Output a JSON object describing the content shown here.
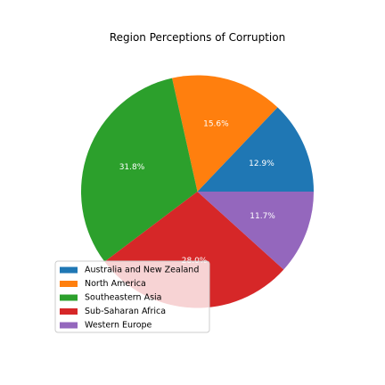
{
  "chart_data": {
    "type": "pie",
    "title": "Region Perceptions of Corruption",
    "categories": [
      "Australia and New Zealand",
      "North America",
      "Southeastern Asia",
      "Sub-Saharan Africa",
      "Western Europe"
    ],
    "values": [
      12.9,
      15.6,
      31.8,
      28.0,
      11.7
    ],
    "labels": [
      "12.9%",
      "15.6%",
      "31.8%",
      "28.0%",
      "11.7%"
    ],
    "colors": [
      "#1f77b4",
      "#ff7f0e",
      "#2ca02c",
      "#d62728",
      "#9467bd"
    ],
    "start_angle_deg": 0,
    "direction": "counterclockwise",
    "legend": {
      "placement": "lower-left",
      "entries": [
        "Australia and New Zealand",
        "North America",
        "Southeastern Asia",
        "Sub-Saharan Africa",
        "Western Europe"
      ]
    }
  }
}
